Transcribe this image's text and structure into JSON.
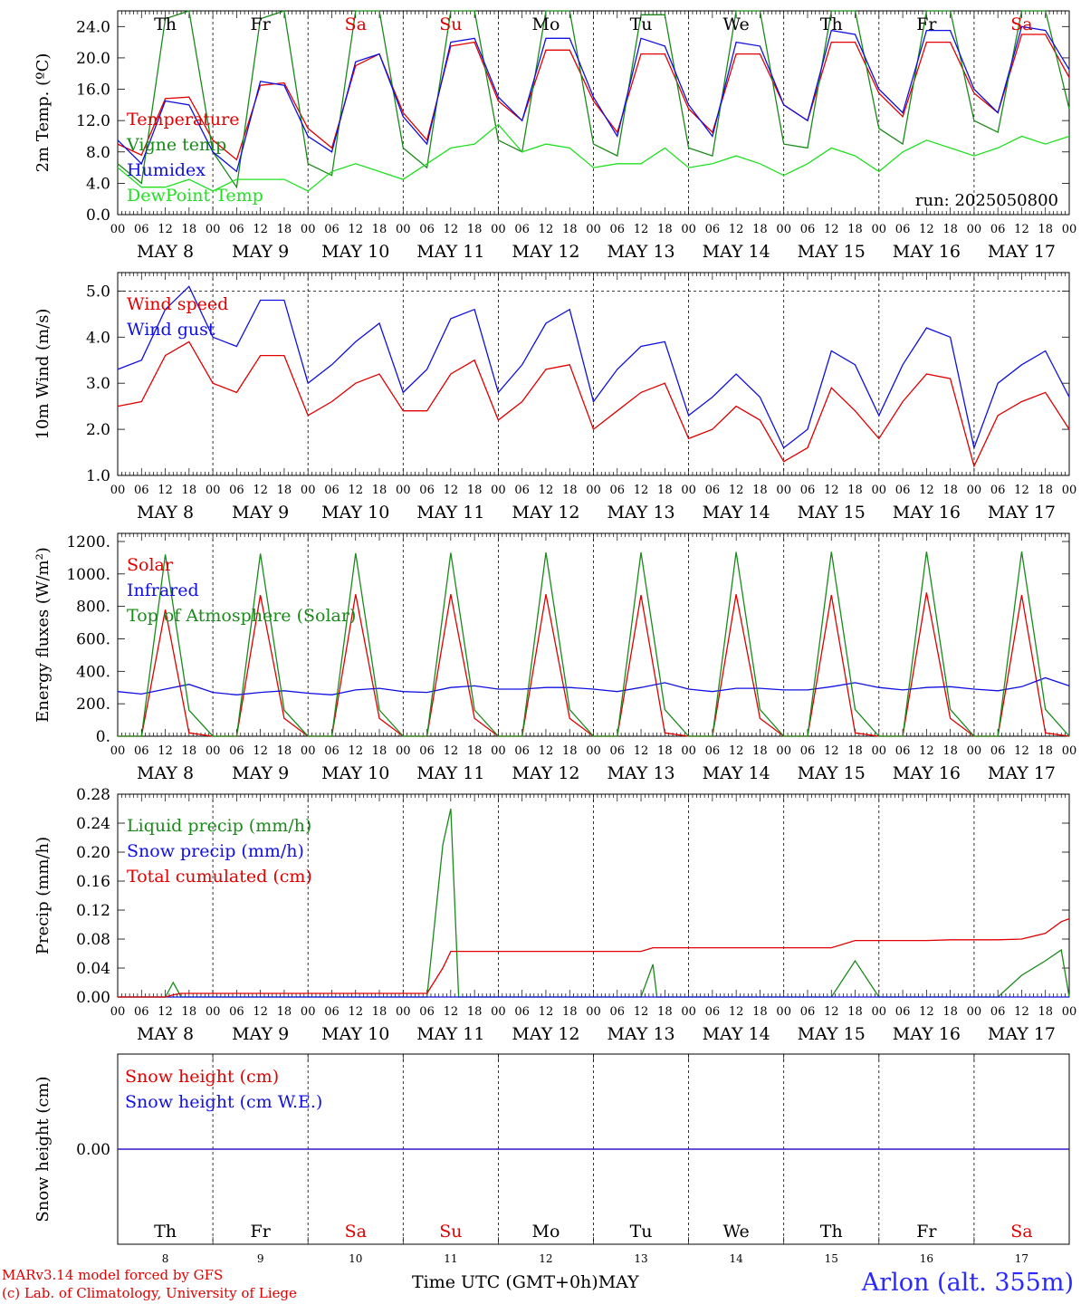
{
  "colors": {
    "red": "#e00000",
    "darkgreen": "#1a8a1a",
    "blue": "#1010e0",
    "lightgreen": "#20e020",
    "weekend": "#e00000",
    "weekday": "#000000"
  },
  "days": [
    {
      "abbr": "Th",
      "date": "8",
      "weekend": false
    },
    {
      "abbr": "Fr",
      "date": "9",
      "weekend": false
    },
    {
      "abbr": "Sa",
      "date": "10",
      "weekend": true
    },
    {
      "abbr": "Su",
      "date": "11",
      "weekend": true
    },
    {
      "abbr": "Mo",
      "date": "12",
      "weekend": false
    },
    {
      "abbr": "Tu",
      "date": "13",
      "weekend": false
    },
    {
      "abbr": "We",
      "date": "14",
      "weekend": false
    },
    {
      "abbr": "Th",
      "date": "15",
      "weekend": false
    },
    {
      "abbr": "Fr",
      "date": "16",
      "weekend": false
    },
    {
      "abbr": "Sa",
      "date": "17",
      "weekend": true
    }
  ],
  "month": "MAY",
  "hour_ticks": [
    "00",
    "06",
    "12",
    "18"
  ],
  "end_tick": "00",
  "footer": {
    "model": "MARv3.14 model forced by GFS",
    "lab": "(c) Lab. of Climatology, University of Liege",
    "time_axis": "Time UTC (GMT+0h)MAY",
    "station": "Arlon (alt. 355m)"
  },
  "chart_data": [
    {
      "type": "line",
      "ylabel": "2m Temp. (ºC)",
      "ylim": [
        0,
        26
      ],
      "yticks": [
        "0.0",
        "4.0",
        "8.0",
        "12.0",
        "16.0",
        "20.0",
        "24.0"
      ],
      "annotation": "run: 2025050800",
      "dashed_y": [],
      "x_hours": [
        0,
        6,
        12,
        18,
        24,
        30,
        36,
        42,
        48,
        54,
        60,
        66,
        72,
        78,
        84,
        90,
        96,
        102,
        108,
        114,
        120,
        126,
        132,
        138,
        144,
        150,
        156,
        162,
        168,
        174,
        180,
        186,
        192,
        198,
        204,
        210,
        216,
        222,
        228,
        234,
        240
      ],
      "series": [
        {
          "name": "Temperature",
          "color": "red",
          "values": [
            9.0,
            7.6,
            14.8,
            15.0,
            9.5,
            7.0,
            16.5,
            16.8,
            11.0,
            8.5,
            19.0,
            20.5,
            13.0,
            9.5,
            21.5,
            22.0,
            14.5,
            12.0,
            21.0,
            21.0,
            14.5,
            10.5,
            20.5,
            20.5,
            13.5,
            10.5,
            20.5,
            20.5,
            14.0,
            12.0,
            22.0,
            22.0,
            15.5,
            12.5,
            22.0,
            22.0,
            15.5,
            13.0,
            23.0,
            23.0,
            17.5
          ]
        },
        {
          "name": "Vigne temp",
          "color": "darkgreen",
          "values": [
            6.5,
            4.0,
            25.0,
            26.0,
            8.0,
            3.5,
            25.0,
            26.0,
            6.5,
            5.0,
            26.0,
            26.0,
            8.5,
            6.0,
            26.0,
            26.0,
            9.5,
            8.0,
            26.0,
            26.0,
            9.0,
            7.5,
            25.5,
            25.5,
            8.5,
            7.5,
            26.0,
            26.0,
            9.0,
            8.5,
            26.0,
            26.0,
            11.0,
            9.0,
            26.0,
            26.0,
            12.0,
            10.5,
            26.0,
            26.0,
            13.5
          ]
        },
        {
          "name": "Humidex",
          "color": "blue",
          "values": [
            9.5,
            6.5,
            14.5,
            14.0,
            8.0,
            5.5,
            17.0,
            16.5,
            10.0,
            8.0,
            19.5,
            20.5,
            12.5,
            9.0,
            22.0,
            22.5,
            15.0,
            12.0,
            22.5,
            22.5,
            15.0,
            10.0,
            22.5,
            21.5,
            14.0,
            10.0,
            22.0,
            21.5,
            14.0,
            12.0,
            23.5,
            23.0,
            16.0,
            13.0,
            23.5,
            23.5,
            16.0,
            13.0,
            24.0,
            23.5,
            18.5
          ]
        },
        {
          "name": "DewPoint Temp",
          "color": "lightgreen",
          "values": [
            6.0,
            3.5,
            3.5,
            4.5,
            3.0,
            4.5,
            4.5,
            4.5,
            3.0,
            5.5,
            6.5,
            5.5,
            4.5,
            6.5,
            8.5,
            9.0,
            11.5,
            8.0,
            9.0,
            8.5,
            6.0,
            6.5,
            6.5,
            8.5,
            6.0,
            6.5,
            7.5,
            6.5,
            5.0,
            6.5,
            8.5,
            7.5,
            5.5,
            8.0,
            9.5,
            8.5,
            7.5,
            8.5,
            10.0,
            9.0,
            10.0
          ]
        }
      ]
    },
    {
      "type": "line",
      "ylabel": "10m Wind (m/s)",
      "ylim": [
        1,
        5.4
      ],
      "yticks": [
        "1.0",
        "2.0",
        "3.0",
        "4.0",
        "5.0"
      ],
      "dashed_y": [
        5.0
      ],
      "x_hours": [
        0,
        6,
        12,
        18,
        24,
        30,
        36,
        42,
        48,
        54,
        60,
        66,
        72,
        78,
        84,
        90,
        96,
        102,
        108,
        114,
        120,
        126,
        132,
        138,
        144,
        150,
        156,
        162,
        168,
        174,
        180,
        186,
        192,
        198,
        204,
        210,
        216,
        222,
        228,
        234,
        240
      ],
      "series": [
        {
          "name": "Wind speed",
          "color": "red",
          "values": [
            2.5,
            2.6,
            3.6,
            3.9,
            3.0,
            2.8,
            3.6,
            3.6,
            2.3,
            2.6,
            3.0,
            3.2,
            2.4,
            2.4,
            3.2,
            3.5,
            2.2,
            2.6,
            3.3,
            3.4,
            2.0,
            2.4,
            2.8,
            3.0,
            1.8,
            2.0,
            2.5,
            2.2,
            1.3,
            1.6,
            2.9,
            2.4,
            1.8,
            2.6,
            3.2,
            3.1,
            1.2,
            2.3,
            2.6,
            2.8,
            2.0
          ]
        },
        {
          "name": "Wind gust",
          "color": "blue",
          "values": [
            3.3,
            3.5,
            4.6,
            5.1,
            4.0,
            3.8,
            4.8,
            4.8,
            3.0,
            3.4,
            3.9,
            4.3,
            2.8,
            3.3,
            4.4,
            4.6,
            2.8,
            3.4,
            4.3,
            4.6,
            2.6,
            3.3,
            3.8,
            3.9,
            2.3,
            2.7,
            3.2,
            2.7,
            1.6,
            2.0,
            3.7,
            3.4,
            2.3,
            3.4,
            4.2,
            4.0,
            1.6,
            3.0,
            3.4,
            3.7,
            2.7
          ]
        }
      ]
    },
    {
      "type": "line",
      "ylabel": "Energy fluxes (W/m²)",
      "ylim": [
        0,
        1250
      ],
      "yticks": [
        "0.",
        "200.",
        "400.",
        "600.",
        "800.",
        "1000.",
        "1200."
      ],
      "dashed_y": [],
      "x_hours": [
        0,
        6,
        12,
        18,
        24,
        30,
        36,
        42,
        48,
        54,
        60,
        66,
        72,
        78,
        84,
        90,
        96,
        102,
        108,
        114,
        120,
        126,
        132,
        138,
        144,
        150,
        156,
        162,
        168,
        174,
        180,
        186,
        192,
        198,
        204,
        210,
        216,
        222,
        228,
        234,
        240
      ],
      "series": [
        {
          "name": "Solar",
          "color": "red",
          "values": [
            0,
            0,
            780,
            20,
            0,
            0,
            870,
            110,
            0,
            0,
            875,
            110,
            0,
            0,
            875,
            110,
            0,
            0,
            875,
            110,
            0,
            0,
            870,
            20,
            0,
            0,
            875,
            110,
            0,
            0,
            870,
            20,
            0,
            0,
            885,
            110,
            0,
            0,
            870,
            20,
            0
          ]
        },
        {
          "name": "Infrared",
          "color": "blue",
          "values": [
            275,
            260,
            290,
            320,
            270,
            255,
            270,
            280,
            265,
            255,
            285,
            295,
            275,
            270,
            300,
            310,
            290,
            290,
            300,
            300,
            290,
            275,
            300,
            330,
            290,
            275,
            295,
            295,
            285,
            285,
            305,
            330,
            300,
            285,
            300,
            305,
            290,
            280,
            305,
            360,
            310
          ]
        },
        {
          "name": "Top of Atmosphere (Solar)",
          "color": "darkgreen",
          "values": [
            0,
            0,
            1120,
            160,
            0,
            0,
            1125,
            160,
            0,
            0,
            1128,
            162,
            0,
            0,
            1130,
            162,
            0,
            0,
            1132,
            164,
            0,
            0,
            1133,
            164,
            0,
            0,
            1135,
            165,
            0,
            0,
            1136,
            165,
            0,
            0,
            1137,
            166,
            0,
            0,
            1138,
            166,
            0
          ]
        }
      ]
    },
    {
      "type": "line",
      "ylabel": "Precip (mm/h)",
      "ylim": [
        0,
        0.28
      ],
      "yticks": [
        "0.00",
        "0.04",
        "0.08",
        "0.12",
        "0.16",
        "0.20",
        "0.24",
        "0.28"
      ],
      "dashed_y": [],
      "x_hours": [
        0,
        6,
        12,
        14,
        16,
        18,
        24,
        30,
        36,
        42,
        48,
        54,
        60,
        66,
        72,
        78,
        82,
        84,
        86,
        90,
        96,
        102,
        108,
        114,
        120,
        126,
        132,
        135,
        136,
        138,
        144,
        150,
        156,
        162,
        168,
        174,
        180,
        186,
        192,
        198,
        204,
        210,
        216,
        222,
        228,
        234,
        238,
        240
      ],
      "series": [
        {
          "name": "Liquid precip (mm/h)",
          "color": "darkgreen",
          "values": [
            0,
            0,
            0,
            0.02,
            0,
            0,
            0,
            0,
            0,
            0,
            0,
            0,
            0,
            0,
            0,
            0,
            0.21,
            0.26,
            0,
            0,
            0,
            0,
            0,
            0,
            0,
            0,
            0,
            0.045,
            0,
            0,
            0,
            0,
            0,
            0,
            0,
            0,
            0,
            0.05,
            0,
            0,
            0,
            0,
            0,
            0,
            0.03,
            0.05,
            0.065,
            0
          ]
        },
        {
          "name": "Snow precip (mm/h)",
          "color": "blue",
          "values": [
            0,
            0,
            0,
            0,
            0,
            0,
            0,
            0,
            0,
            0,
            0,
            0,
            0,
            0,
            0,
            0,
            0,
            0,
            0,
            0,
            0,
            0,
            0,
            0,
            0,
            0,
            0,
            0,
            0,
            0,
            0,
            0,
            0,
            0,
            0,
            0,
            0,
            0,
            0,
            0,
            0,
            0,
            0,
            0,
            0,
            0,
            0,
            0
          ]
        },
        {
          "name": "Total cumulated (cm)",
          "color": "red",
          "values": [
            0,
            0,
            0,
            0.003,
            0.005,
            0.005,
            0.005,
            0.005,
            0.005,
            0.005,
            0.005,
            0.005,
            0.005,
            0.005,
            0.005,
            0.005,
            0.04,
            0.063,
            0.063,
            0.063,
            0.063,
            0.063,
            0.063,
            0.063,
            0.063,
            0.063,
            0.063,
            0.068,
            0.068,
            0.068,
            0.068,
            0.068,
            0.068,
            0.068,
            0.068,
            0.068,
            0.068,
            0.078,
            0.078,
            0.078,
            0.078,
            0.079,
            0.079,
            0.079,
            0.08,
            0.088,
            0.104,
            0.108
          ]
        }
      ]
    },
    {
      "type": "line",
      "ylabel": "Snow height (cm)",
      "ylim": [
        -1,
        1
      ],
      "yticks": [
        "0.00"
      ],
      "dashed_y": [],
      "x_hours": [
        0,
        240
      ],
      "series": [
        {
          "name": "Snow height (cm)",
          "color": "red",
          "values": [
            0,
            0
          ]
        },
        {
          "name": "Snow height (cm W.E.)",
          "color": "blue",
          "values": [
            0,
            0
          ]
        }
      ]
    }
  ]
}
